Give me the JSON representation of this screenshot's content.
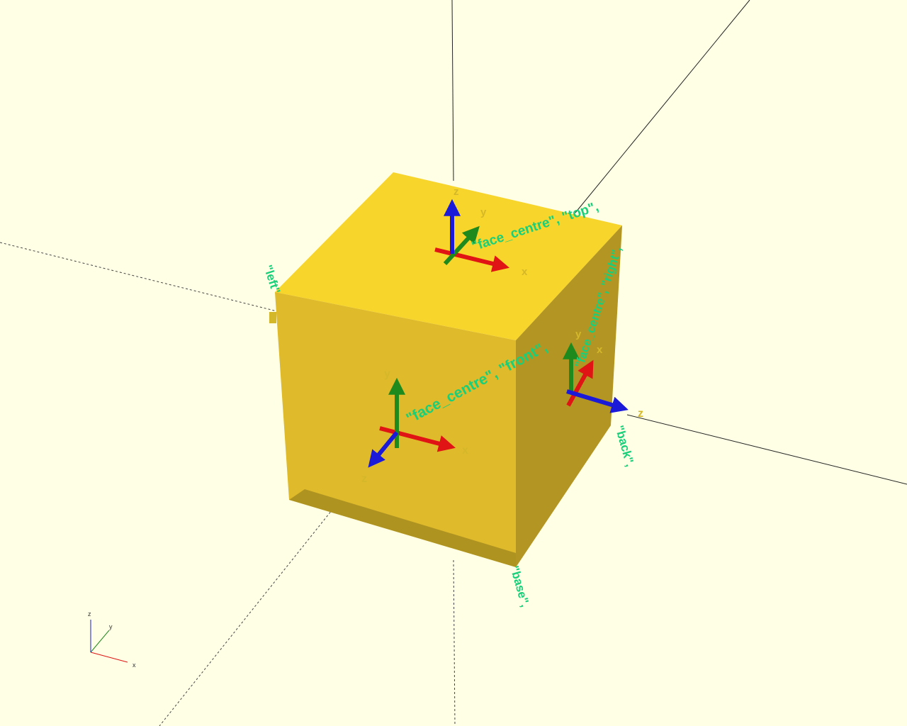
{
  "viewer": {
    "background_color": "#ffffe5",
    "cube_colors": {
      "top": "#f8d52b",
      "front": "#dfba2a",
      "right": "#b29523",
      "edge": "#c9a623"
    },
    "axis_colors": {
      "x": "#e01414",
      "y": "#1e8a1e",
      "z": "#1a1ad8"
    },
    "label_color": "#19cf7a",
    "axis_letter_color": "#d4b82a"
  },
  "anchors": {
    "top": {
      "text": "\"face_centre\", \"top\",",
      "x_letter": "x",
      "y_letter": "y",
      "z_letter": "z"
    },
    "front": {
      "text": "\"face_centre\", \"front\",",
      "x_letter": "x",
      "y_letter": "y",
      "z_letter": "z"
    },
    "right": {
      "text": "\"face_centre\", \"right\",",
      "x_letter": "x",
      "y_letter": "y",
      "z_letter": "z"
    },
    "back": {
      "text": "\"back\","
    },
    "base": {
      "text": "\"base\","
    },
    "left": {
      "text": "\"left\""
    }
  },
  "axes_gizmo": {
    "x_label": "x",
    "y_label": "y",
    "z_label": "z"
  }
}
